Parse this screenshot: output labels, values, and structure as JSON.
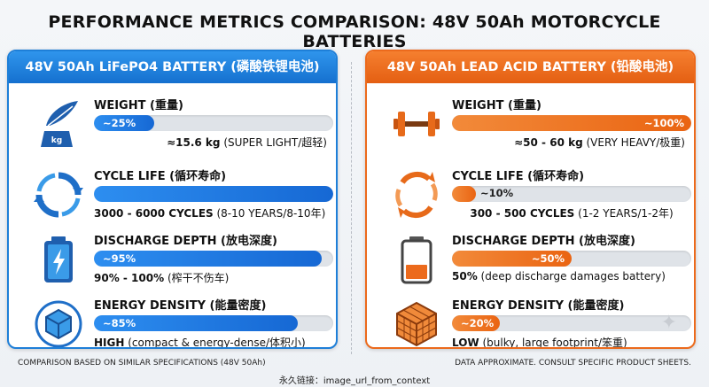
{
  "title": "PERFORMANCE METRICS COMPARISON: 48V 50Ah MOTORCYCLE BATTERIES",
  "left": {
    "header": "48V 50Ah LiFePO4 BATTERY (磷酸铁锂电池)",
    "accent": "#1e7fd8",
    "metrics": [
      {
        "label": "WEIGHT (重量)",
        "bar_text": "~25%",
        "fraction": 0.25,
        "value_bold": "≈15.6 kg",
        "value_rest": " (SUPER LIGHT/超轻)",
        "icon": "feather-weight-icon"
      },
      {
        "label": "CYCLE LIFE (循环寿命)",
        "bar_text": "",
        "fraction": 1.0,
        "value_bold": "3000 - 6000 CYCLES",
        "value_rest": " (8-10 YEARS/8-10年)",
        "icon": "cycle-arrows-icon"
      },
      {
        "label": "DISCHARGE DEPTH (放电深度)",
        "bar_text": "~95%",
        "fraction": 0.95,
        "value_bold": "90% - 100%",
        "value_rest": " (榨干不伤车)",
        "icon": "battery-bolt-icon"
      },
      {
        "label": "ENERGY DENSITY (能量密度)",
        "bar_text": "~85%",
        "fraction": 0.85,
        "value_bold": "HIGH",
        "value_rest": " (compact & energy-dense/体积小)",
        "icon": "dense-cube-icon"
      }
    ]
  },
  "right": {
    "header": "48V 50Ah LEAD ACID BATTERY (铅酸电池)",
    "accent": "#ec6a1c",
    "metrics": [
      {
        "label": "WEIGHT (重量)",
        "bar_text": "~100%",
        "fraction": 1.0,
        "value_bold": "≈50 - 60 kg",
        "value_rest": " (VERY HEAVY/极重)",
        "icon": "dumbbell-icon"
      },
      {
        "label": "CYCLE LIFE (循环寿命)",
        "bar_text": "~10%",
        "fraction": 0.1,
        "value_bold": "300 - 500 CYCLES",
        "value_rest": " (1-2 YEARS/1-2年)",
        "icon": "cycle-arrows-icon"
      },
      {
        "label": "DISCHARGE DEPTH (放电深度)",
        "bar_text": "~50%",
        "fraction": 0.5,
        "value_bold": "50%",
        "value_rest": " (deep discharge damages battery)",
        "icon": "battery-low-icon"
      },
      {
        "label": "ENERGY DENSITY (能量密度)",
        "bar_text": "~20%",
        "fraction": 0.2,
        "value_bold": "LOW",
        "value_rest": " (bulky, large footprint/笨重)",
        "icon": "grid-cube-icon"
      }
    ]
  },
  "footer": {
    "left_note": "COMPARISON BASED ON SIMILAR SPECIFICATIONS (48V 50Ah)",
    "right_note": "DATA APPROXIMATE. CONSULT SPECIFIC PRODUCT SHEETS.",
    "link": "永久链接：image_url_from_context"
  }
}
